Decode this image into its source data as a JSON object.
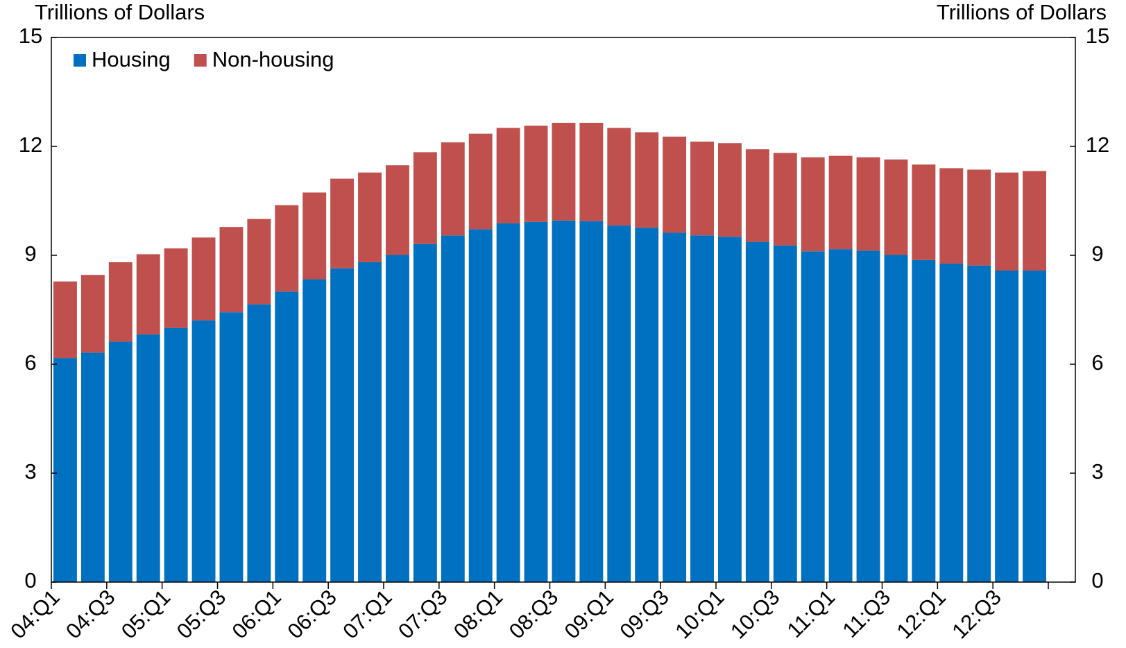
{
  "chart_data": {
    "type": "bar",
    "stacked": true,
    "y_label": "Trillions of Dollars",
    "y2_label": "Trillions of Dollars",
    "categories": [
      "04:Q1",
      null,
      "04:Q3",
      null,
      "05:Q1",
      null,
      "05:Q3",
      null,
      "06:Q1",
      null,
      "06:Q3",
      null,
      "07:Q1",
      null,
      "07:Q3",
      null,
      "08:Q1",
      null,
      "08:Q3",
      null,
      "09:Q1",
      null,
      "09:Q3",
      null,
      "10:Q1",
      null,
      "10:Q3",
      null,
      "11:Q1",
      null,
      "11:Q3",
      null,
      "12:Q1",
      null,
      "12:Q3",
      null
    ],
    "series": [
      {
        "name": "Housing",
        "color": "#0070c0",
        "values": [
          6.17,
          6.32,
          6.62,
          6.82,
          7.0,
          7.21,
          7.43,
          7.65,
          8.0,
          8.34,
          8.64,
          8.81,
          9.01,
          9.31,
          9.55,
          9.72,
          9.88,
          9.92,
          9.96,
          9.94,
          9.82,
          9.76,
          9.62,
          9.55,
          9.51,
          9.37,
          9.27,
          9.11,
          9.17,
          9.13,
          9.01,
          8.87,
          8.77,
          8.72,
          8.58,
          8.58
        ]
      },
      {
        "name": "Non-housing",
        "color": "#c0504d",
        "values": [
          2.11,
          2.14,
          2.19,
          2.21,
          2.19,
          2.28,
          2.35,
          2.35,
          2.38,
          2.39,
          2.47,
          2.47,
          2.47,
          2.53,
          2.56,
          2.63,
          2.63,
          2.65,
          2.69,
          2.71,
          2.69,
          2.63,
          2.65,
          2.58,
          2.58,
          2.55,
          2.55,
          2.59,
          2.57,
          2.57,
          2.63,
          2.63,
          2.63,
          2.64,
          2.7,
          2.74
        ]
      }
    ],
    "ylim": [
      0,
      15
    ],
    "yticks": [
      0,
      3,
      6,
      9,
      12,
      15
    ],
    "y2lim": [
      0,
      15
    ],
    "y2ticks": [
      0,
      3,
      6,
      9,
      12,
      15
    ],
    "legend": "upper left",
    "grid": false
  }
}
